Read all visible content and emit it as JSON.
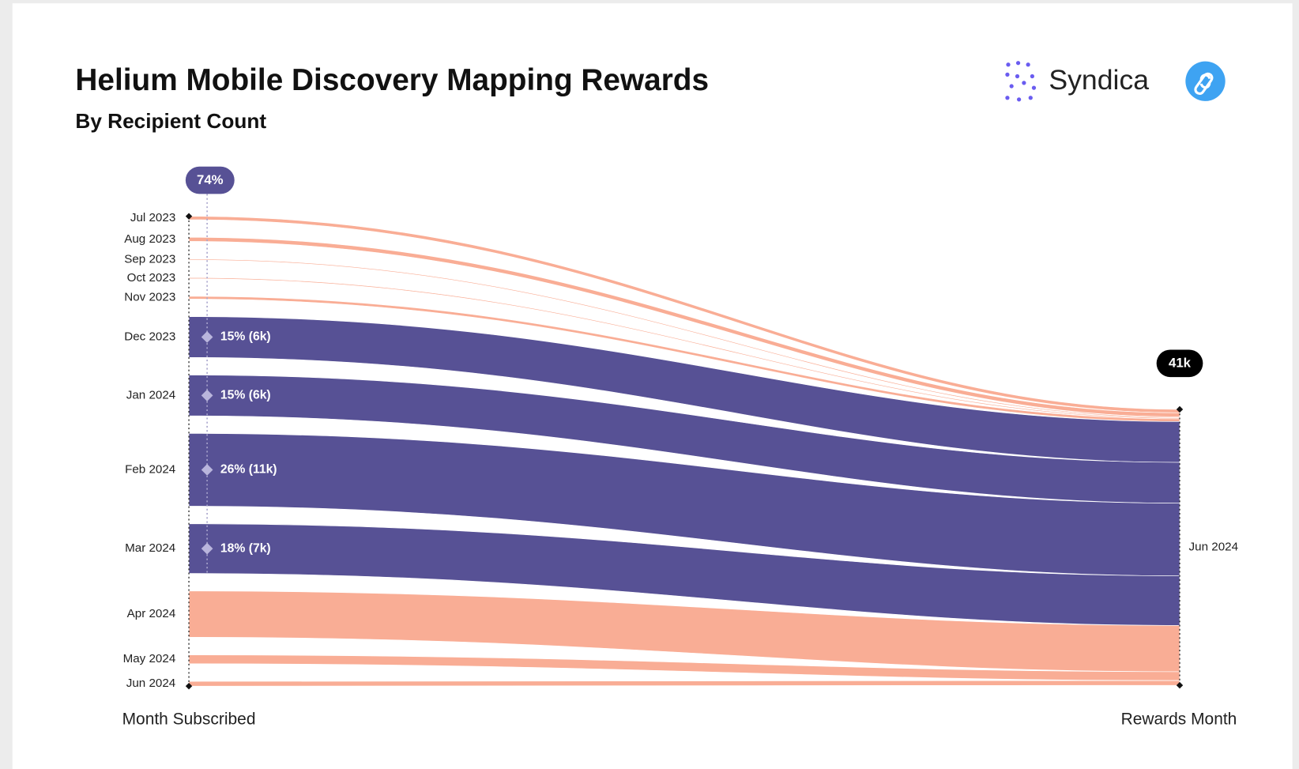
{
  "chart_data": {
    "type": "sankey",
    "title": "Helium Mobile Discovery Mapping Rewards",
    "subtitle": "By Recipient Count",
    "brand": "Syndica",
    "categories": [
      "Jul 2023",
      "Aug 2023",
      "Sep 2023",
      "Oct 2023",
      "Nov 2023",
      "Dec 2023",
      "Jan 2024",
      "Feb 2024",
      "Mar 2024",
      "Apr 2024",
      "May 2024",
      "Jun 2024"
    ],
    "values": [
      500,
      600,
      150,
      150,
      400,
      6000,
      6000,
      10700,
      7300,
      6800,
      1300,
      700
    ],
    "value_labels": [
      null,
      null,
      null,
      null,
      null,
      "15% (6k)",
      "15% (6k)",
      "26% (11k)",
      "18% (7k)",
      null,
      null,
      null
    ],
    "colors": [
      "#f9ad95",
      "#f9ad95",
      "#f9ad95",
      "#f9ad95",
      "#f9ad95",
      "#575195",
      "#575195",
      "#575195",
      "#575195",
      "#f9ad95",
      "#f9ad95",
      "#f9ad95"
    ],
    "target": "Jun 2024",
    "share_label": "74%",
    "total_label": "41k",
    "source_axis_label": "Month Subscribed",
    "target_axis_label": "Rewards Month"
  }
}
